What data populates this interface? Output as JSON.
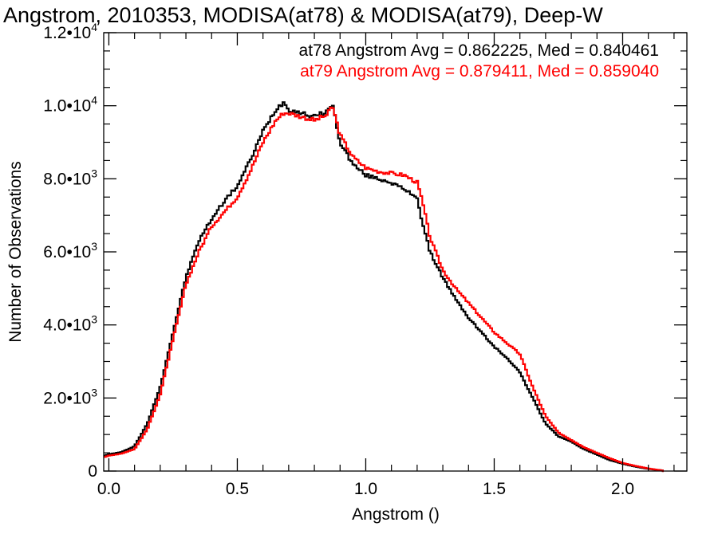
{
  "chart_data": {
    "type": "line",
    "step": true,
    "title": "Angstrom, 2010353, MODISA(at78) & MODISA(at79), Deep-W",
    "xlabel": "Angstrom ()",
    "ylabel": "Number of Observations",
    "xlim": [
      -0.02,
      2.25
    ],
    "ylim": [
      0,
      12000
    ],
    "x_ticks": [
      {
        "value": 0.0,
        "label": "0.0"
      },
      {
        "value": 0.5,
        "label": "0.5"
      },
      {
        "value": 1.0,
        "label": "1.0"
      },
      {
        "value": 1.5,
        "label": "1.5"
      },
      {
        "value": 2.0,
        "label": "2.0"
      }
    ],
    "y_ticks": [
      {
        "value": 0,
        "mantissa": "0",
        "exp": ""
      },
      {
        "value": 2000,
        "mantissa": "2.0•10",
        "exp": "3"
      },
      {
        "value": 4000,
        "mantissa": "4.0•10",
        "exp": "3"
      },
      {
        "value": 6000,
        "mantissa": "6.0•10",
        "exp": "3"
      },
      {
        "value": 8000,
        "mantissa": "8.0•10",
        "exp": "3"
      },
      {
        "value": 10000,
        "mantissa": "1.0•10",
        "exp": "4"
      },
      {
        "value": 12000,
        "mantissa": "1.2•10",
        "exp": "4"
      }
    ],
    "legend": [
      {
        "text": "at78 Angstrom Avg = 0.862225, Med = 0.840461",
        "color": "#000000"
      },
      {
        "text": "at79 Angstrom Avg = 0.879411, Med = 0.859040",
        "color": "#ff0000"
      }
    ],
    "legend_position": "top-right",
    "x_knots": [
      -0.02,
      0.0,
      0.05,
      0.1,
      0.15,
      0.2,
      0.25,
      0.3,
      0.35,
      0.4,
      0.45,
      0.5,
      0.55,
      0.6,
      0.65,
      0.68,
      0.7,
      0.75,
      0.8,
      0.85,
      0.87,
      0.9,
      0.95,
      1.0,
      1.05,
      1.1,
      1.15,
      1.2,
      1.22,
      1.25,
      1.3,
      1.35,
      1.4,
      1.45,
      1.5,
      1.55,
      1.6,
      1.65,
      1.7,
      1.75,
      1.8,
      1.85,
      1.9,
      1.95,
      2.0,
      2.05,
      2.1,
      2.15,
      2.16
    ],
    "series": [
      {
        "name": "at78",
        "color": "#000000",
        "values": [
          420,
          460,
          520,
          680,
          1300,
          2300,
          3800,
          5300,
          6300,
          6900,
          7400,
          7800,
          8500,
          9300,
          9900,
          10100,
          9900,
          9800,
          9700,
          9850,
          10050,
          9000,
          8400,
          8100,
          8000,
          7900,
          7700,
          7500,
          6800,
          6000,
          5300,
          4700,
          4200,
          3800,
          3400,
          3100,
          2700,
          2000,
          1300,
          950,
          800,
          600,
          450,
          300,
          200,
          120,
          60,
          20,
          0
        ]
      },
      {
        "name": "at79",
        "color": "#ff0000",
        "values": [
          380,
          420,
          480,
          600,
          1150,
          2100,
          3600,
          5100,
          6000,
          6700,
          7100,
          7500,
          8200,
          9000,
          9600,
          9800,
          9800,
          9700,
          9600,
          9750,
          10000,
          9200,
          8600,
          8300,
          8200,
          8150,
          8100,
          7900,
          7400,
          6400,
          5500,
          5000,
          4600,
          4200,
          3800,
          3500,
          3200,
          2300,
          1500,
          1050,
          850,
          650,
          500,
          350,
          220,
          140,
          70,
          20,
          0
        ]
      }
    ]
  }
}
